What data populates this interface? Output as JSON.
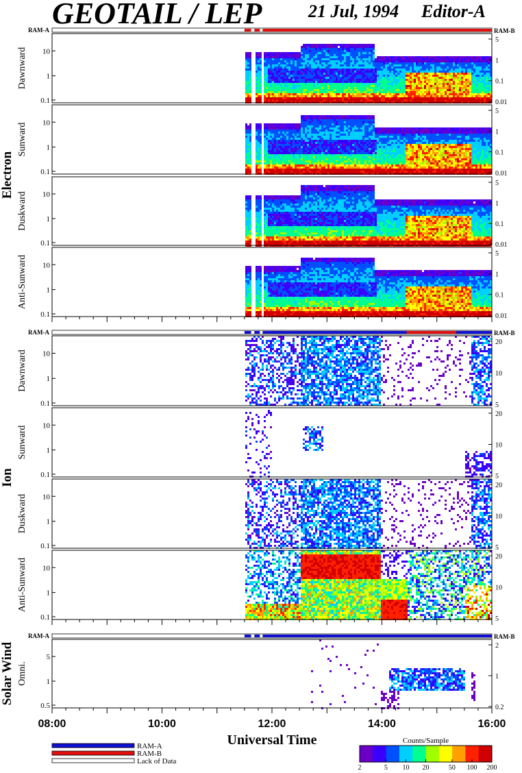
{
  "header": {
    "title": "GEOTAIL / LEP",
    "date": "21 Jul, 1994",
    "editor": "Editor-A"
  },
  "chart_data": {
    "type": "heatmap",
    "xlabel": "Universal Time",
    "x_ticks": [
      "08:00",
      "10:00",
      "12:00",
      "14:00",
      "16:00"
    ],
    "x_range": [
      "08:00",
      "16:00"
    ],
    "ram_labels": {
      "left": "RAM-A",
      "right": "RAM-B"
    },
    "data_start": "11:30",
    "groups": [
      {
        "name": "Electron",
        "ram_bar": "red",
        "panels": [
          {
            "label": "Dawnward",
            "left_ticks": [
              "10",
              "1",
              "0.1"
            ],
            "right_ticks": [
              "5",
              "1",
              "0.1",
              "0.01"
            ]
          },
          {
            "label": "Sunward",
            "left_ticks": [
              "10",
              "1",
              "0.1"
            ],
            "right_ticks": [
              "5",
              "1",
              "0.1",
              "0.01"
            ]
          },
          {
            "label": "Duskward",
            "left_ticks": [
              "10",
              "1",
              "0.1"
            ],
            "right_ticks": [
              "5",
              "1",
              "0.1",
              "0.01"
            ]
          },
          {
            "label": "Anti-Sunward",
            "left_ticks": [
              "10",
              "1",
              "0.1"
            ],
            "right_ticks": [
              "5",
              "1",
              "0.1",
              "0.01"
            ]
          }
        ]
      },
      {
        "name": "Ion",
        "ram_bar": "blue",
        "panels": [
          {
            "label": "Dawnward",
            "left_ticks": [
              "10",
              "1",
              "0.1"
            ],
            "right_ticks": [
              "20",
              "10",
              "5"
            ]
          },
          {
            "label": "Sunward",
            "left_ticks": [
              "10",
              "1",
              "0.1"
            ],
            "right_ticks": [
              "20",
              "10",
              "5"
            ]
          },
          {
            "label": "Duskward",
            "left_ticks": [
              "10",
              "1",
              "0.1"
            ],
            "right_ticks": [
              "20",
              "10",
              "5"
            ]
          },
          {
            "label": "Anti-Sunward",
            "left_ticks": [
              "10",
              "1",
              "0.1"
            ],
            "right_ticks": [
              "20",
              "10",
              "5"
            ]
          }
        ]
      },
      {
        "name": "Solar Wind",
        "ram_bar": "blue",
        "panels": [
          {
            "label": "Omni.",
            "left_ticks": [
              "5",
              "1",
              "0.5"
            ],
            "right_ticks": [
              "2",
              "1",
              "0.2"
            ]
          }
        ]
      }
    ],
    "legend": {
      "items": [
        {
          "label": "RAM-A",
          "color": "#1010d0"
        },
        {
          "label": "RAM-B",
          "color": "#e01010"
        },
        {
          "label": "Lack of Data",
          "color": "#ffffff"
        }
      ]
    },
    "colorbar": {
      "title": "Counts/Sample",
      "ticks": [
        "2",
        "5",
        "10",
        "20",
        "50",
        "100",
        "200"
      ],
      "scale": "log",
      "colors": [
        "#6a00c8",
        "#3a00ff",
        "#0050ff",
        "#00d0ff",
        "#00ff90",
        "#a0ff00",
        "#ffff00",
        "#ffa000",
        "#ff2000",
        "#d00000"
      ]
    }
  }
}
